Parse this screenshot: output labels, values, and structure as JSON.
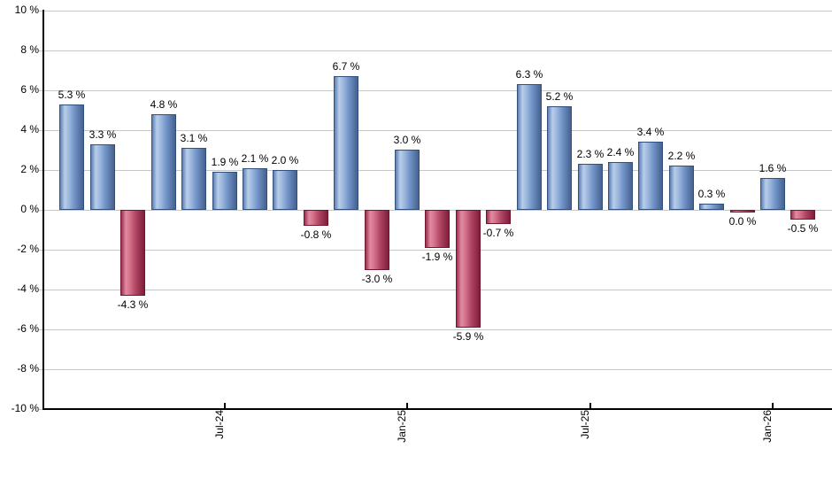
{
  "chart_data": {
    "type": "bar",
    "title": "",
    "value_unit": "%",
    "ylim": [
      -10,
      10
    ],
    "y_tick_step": 2,
    "grid": true,
    "legend_position": "none",
    "y_tick_labels": [
      "10 %",
      "8 %",
      "6 %",
      "4 %",
      "2 %",
      "0 %",
      "-2 %",
      "-4 %",
      "-6 %",
      "-8 %",
      "-10 %"
    ],
    "x_tick_labels": [
      {
        "label": "Jul-24",
        "bar_index": 5
      },
      {
        "label": "Jan-25",
        "bar_index": 11
      },
      {
        "label": "Jul-25",
        "bar_index": 17
      },
      {
        "label": "Jan-26",
        "bar_index": 23
      }
    ],
    "bars": [
      {
        "value": 5.3,
        "label": "5.3 %"
      },
      {
        "value": 3.3,
        "label": "3.3 %"
      },
      {
        "value": -4.3,
        "label": "-4.3 %"
      },
      {
        "value": 4.8,
        "label": "4.8 %"
      },
      {
        "value": 3.1,
        "label": "3.1 %"
      },
      {
        "value": 1.9,
        "label": "1.9 %"
      },
      {
        "value": 2.1,
        "label": "2.1 %"
      },
      {
        "value": 2.0,
        "label": "2.0 %"
      },
      {
        "value": -0.8,
        "label": "-0.8 %"
      },
      {
        "value": 6.7,
        "label": "6.7 %"
      },
      {
        "value": -3.0,
        "label": "-3.0 %"
      },
      {
        "value": 3.0,
        "label": "3.0 %"
      },
      {
        "value": -1.9,
        "label": "-1.9 %"
      },
      {
        "value": -5.9,
        "label": "-5.9 %"
      },
      {
        "value": -0.7,
        "label": "-0.7 %"
      },
      {
        "value": 6.3,
        "label": "6.3 %"
      },
      {
        "value": 5.2,
        "label": "5.2 %"
      },
      {
        "value": 2.3,
        "label": "2.3 %"
      },
      {
        "value": 2.4,
        "label": "2.4 %"
      },
      {
        "value": 3.4,
        "label": "3.4 %"
      },
      {
        "value": 2.2,
        "label": "2.2 %"
      },
      {
        "value": 0.3,
        "label": "0.3 %"
      },
      {
        "value": 0.0,
        "label": "0.0 %",
        "negative": true
      },
      {
        "value": 1.6,
        "label": "1.6 %"
      },
      {
        "value": -0.5,
        "label": "-0.5 %"
      }
    ]
  },
  "colors": {
    "background": "#ffffff",
    "gridline": "#c6c6c6",
    "axis": "#000000",
    "label_text": "#000000",
    "positive_bar": {
      "border": "#31507d",
      "gradient_stops": [
        "#5c80b4 0%",
        "#b9cde9 20%",
        "#9cb7dd 38%",
        "#7093c8 62%",
        "#46618e 100%"
      ]
    },
    "negative_bar": {
      "border": "#73172f",
      "gradient_stops": [
        "#9e2d4e 0%",
        "#e08ba1 20%",
        "#d4708a 38%",
        "#b04764 62%",
        "#7f1d3b 100%"
      ]
    }
  }
}
